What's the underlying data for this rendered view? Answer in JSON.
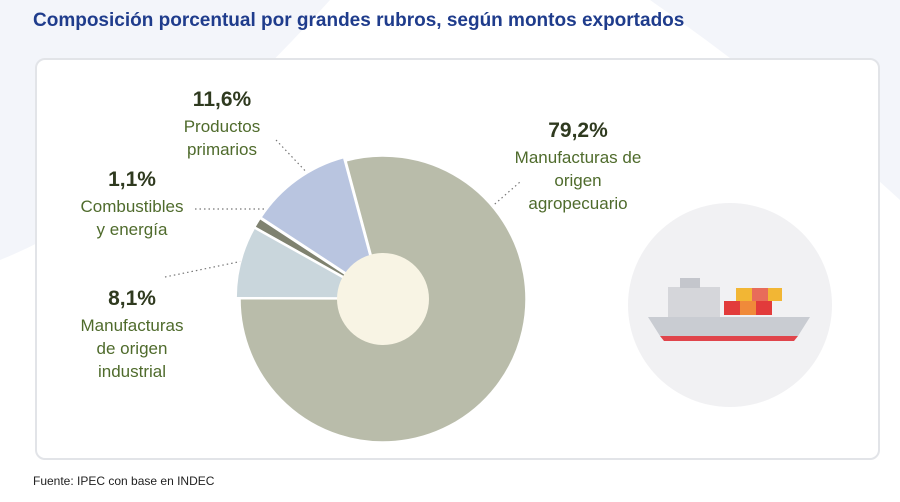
{
  "title": "Composición porcentual por grandes rubros, según montos exportados",
  "source": "Fuente: IPEC con base en INDEC",
  "chart_data": {
    "type": "pie",
    "categories": [
      "Manufacturas de origen agropecuario",
      "Manufacturas de origen industrial",
      "Combustibles y energía",
      "Productos primarios"
    ],
    "values": [
      79.2,
      8.1,
      1.1,
      11.6
    ],
    "value_labels": [
      "79,2%",
      "8,1%",
      "1,1%",
      "11,6%"
    ],
    "colors": [
      "#b9bcaa",
      "#c9d6dc",
      "#7f8270",
      "#b9c5e0"
    ]
  }
}
